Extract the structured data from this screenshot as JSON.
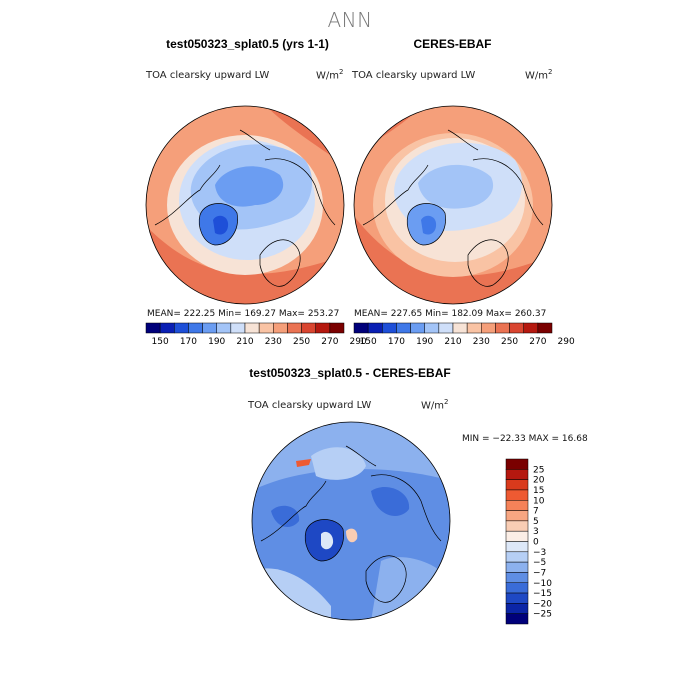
{
  "page": {
    "main_title": "ANN"
  },
  "panels": [
    {
      "title": "test050323_splat0.5 (yrs 1-1)",
      "variable": "TOA clearsky upward LW",
      "units": "W/m",
      "units_exp": "2",
      "stats": "MEAN= 222.25   Min= 169.27   Max= 253.27"
    },
    {
      "title": "CERES-EBAF",
      "variable": "TOA clearsky upward LW",
      "units": "W/m",
      "units_exp": "2",
      "stats": "MEAN= 227.65   Min= 182.09   Max= 260.37"
    },
    {
      "title": "test050323_splat0.5 - CERES-EBAF",
      "variable": "TOA clearsky upward LW",
      "units": "W/m",
      "units_exp": "2",
      "stats": "MIN = −22.33  MAX =  16.68"
    }
  ],
  "chart_data": [
    {
      "type": "heatmap",
      "projection": "north polar stereographic",
      "title": "test050323_splat0.5 (yrs 1-1)",
      "variable": "TOA clearsky upward LW",
      "units": "W/m^2",
      "mean": 222.25,
      "min": 169.27,
      "max": 253.27,
      "colorbar": {
        "ticks": [
          "150",
          "170",
          "190",
          "210",
          "230",
          "250",
          "270",
          "290"
        ],
        "colors": [
          "#00007a",
          "#0a1fb4",
          "#1e4fd8",
          "#3f78e8",
          "#6b9df2",
          "#a3c4f7",
          "#cfdff9",
          "#f7e3d6",
          "#f9c3a4",
          "#f59f7a",
          "#ea7353",
          "#d94530",
          "#b5180f",
          "#7a0000"
        ]
      }
    },
    {
      "type": "heatmap",
      "projection": "north polar stereographic",
      "title": "CERES-EBAF",
      "variable": "TOA clearsky upward LW",
      "units": "W/m^2",
      "mean": 227.65,
      "min": 182.09,
      "max": 260.37,
      "colorbar": {
        "ticks": [
          "150",
          "170",
          "190",
          "210",
          "230",
          "250",
          "270",
          "290"
        ],
        "colors": [
          "#00007a",
          "#0a1fb4",
          "#1e4fd8",
          "#3f78e8",
          "#6b9df2",
          "#a3c4f7",
          "#cfdff9",
          "#f7e3d6",
          "#f9c3a4",
          "#f59f7a",
          "#ea7353",
          "#d94530",
          "#b5180f",
          "#7a0000"
        ]
      }
    },
    {
      "type": "heatmap",
      "projection": "north polar stereographic",
      "title": "test050323_splat0.5 - CERES-EBAF",
      "variable": "TOA clearsky upward LW",
      "units": "W/m^2",
      "min": -22.33,
      "max": 16.68,
      "colorbar": {
        "ticks": [
          "25",
          "20",
          "15",
          "10",
          "7",
          "5",
          "3",
          "0",
          "−3",
          "−5",
          "−7",
          "−10",
          "−15",
          "−20",
          "−25"
        ],
        "colors": [
          "#7a0000",
          "#b5180f",
          "#d93a1c",
          "#ee5a32",
          "#f58259",
          "#f7a682",
          "#f9cdb4",
          "#fbeee6",
          "#dde8f8",
          "#b6cff5",
          "#8cb1ee",
          "#5f8ee4",
          "#3a6cd8",
          "#1e48c4",
          "#0b25a6",
          "#00007a"
        ]
      }
    }
  ]
}
